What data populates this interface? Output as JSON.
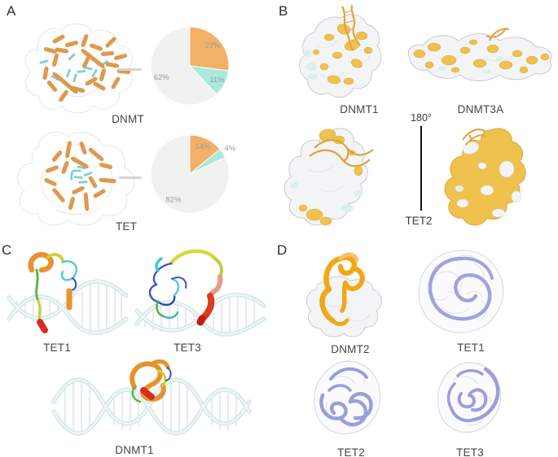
{
  "panels": {
    "a": {
      "letter": "A",
      "groups": [
        {
          "label": "DNMT"
        },
        {
          "label": "TET"
        }
      ]
    },
    "b": {
      "letter": "B",
      "items": [
        {
          "label": "DNMT1"
        },
        {
          "label": "DNMT3A"
        }
      ],
      "rotation": {
        "angle_label": "180°",
        "structure_label": "TET2"
      }
    },
    "c": {
      "letter": "C",
      "items": [
        {
          "label": "TET1"
        },
        {
          "label": "TET3"
        },
        {
          "label": "DNMT1"
        }
      ]
    },
    "d": {
      "letter": "D",
      "items": [
        {
          "label": "DNMT2"
        },
        {
          "label": "TET1"
        },
        {
          "label": "TET2"
        },
        {
          "label": "TET3"
        }
      ]
    }
  },
  "chart_data": [
    {
      "type": "pie",
      "group": "DNMT",
      "slices": [
        {
          "label": "27%",
          "value": 27,
          "color": "#F2B167"
        },
        {
          "label": "11%",
          "value": 11,
          "color": "#ABE9DF"
        },
        {
          "label": "62%",
          "value": 62,
          "color": "#F1F1F1"
        }
      ],
      "start_angle_deg": -90,
      "direction": "clockwise",
      "label_color": "#9a9a9a",
      "legend": false
    },
    {
      "type": "pie",
      "group": "TET",
      "slices": [
        {
          "label": "14%",
          "value": 14,
          "color": "#F2B167"
        },
        {
          "label": "4%",
          "value": 4,
          "color": "#ABE9DF"
        },
        {
          "label": "82%",
          "value": 82,
          "color": "#F1F1F1"
        }
      ],
      "start_angle_deg": -90,
      "direction": "clockwise",
      "label_color": "#9a9a9a",
      "legend": false
    }
  ],
  "colors": {
    "helix_orange": "#E09A4E",
    "sheet_cyan": "#6FCCD8",
    "surface_white": "#F3F4F6",
    "surface_gold": "#EFC14D",
    "surface_pale_cyan": "#DCEFED",
    "dna_orange": "#E2A23F",
    "dna_pale": "#D9E8E9",
    "ribbon_purple": "#A0A3DF",
    "rotation_line": "#151515"
  }
}
